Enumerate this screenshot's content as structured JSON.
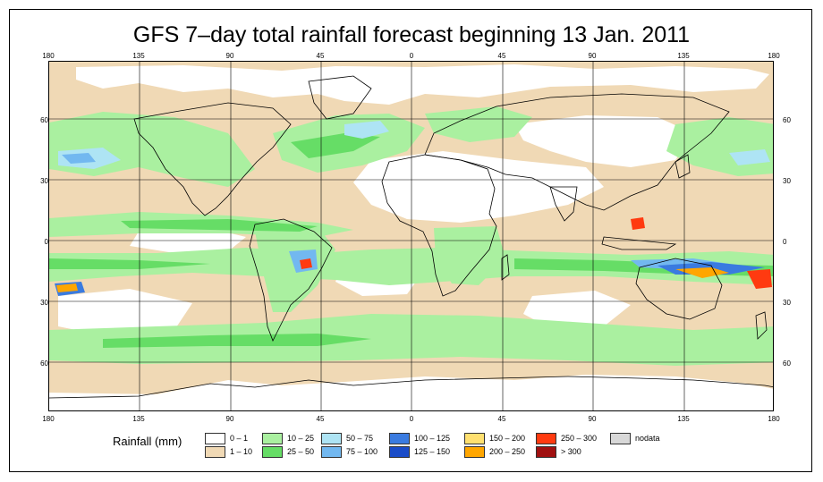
{
  "title": "GFS 7–day total rainfall forecast beginning 13 Jan. 2011",
  "axes": {
    "top_lon_labels": [
      "180",
      "135",
      "90",
      "45",
      "0",
      "45",
      "90",
      "135",
      "180"
    ],
    "bottom_lon_labels": [
      "180",
      "135",
      "90",
      "45",
      "0",
      "45",
      "90",
      "135",
      "180"
    ],
    "left_lat_labels": [
      "60",
      "30",
      "0",
      "30",
      "60"
    ],
    "right_lat_labels": [
      "60",
      "30",
      "0",
      "30",
      "60"
    ]
  },
  "legend": {
    "title": "Rainfall (mm)",
    "items": [
      {
        "label": "0 – 1",
        "color": "#ffffff"
      },
      {
        "label": "1 – 10",
        "color": "#f0d9b5"
      },
      {
        "label": "10 – 25",
        "color": "#aaf0a0"
      },
      {
        "label": "25 – 50",
        "color": "#66dd66"
      },
      {
        "label": "50 – 75",
        "color": "#aee4f4"
      },
      {
        "label": "75 – 100",
        "color": "#72b8f0"
      },
      {
        "label": "100 – 125",
        "color": "#3a7be0"
      },
      {
        "label": "125 – 150",
        "color": "#1a4cc8"
      },
      {
        "label": "150 – 200",
        "color": "#ffe070"
      },
      {
        "label": "200 – 250",
        "color": "#ffa600"
      },
      {
        "label": "250 – 300",
        "color": "#ff3a10"
      },
      {
        "label": "> 300",
        "color": "#a01010"
      },
      {
        "label": "nodata",
        "color": "#d8d8d8"
      }
    ]
  }
}
